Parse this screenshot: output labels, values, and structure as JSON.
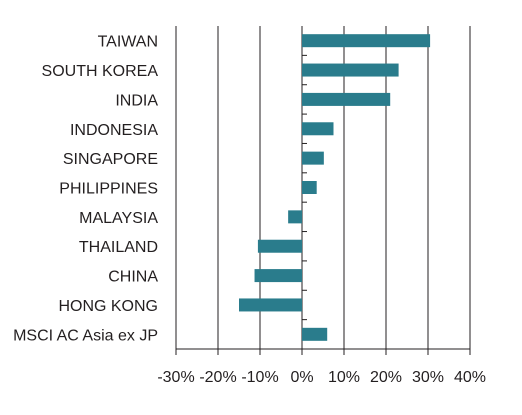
{
  "chart_data": {
    "type": "bar",
    "orientation": "horizontal",
    "title": "",
    "xlabel": "",
    "ylabel": "",
    "categories": [
      "TAIWAN",
      "SOUTH KOREA",
      "INDIA",
      "INDONESIA",
      "SINGAPORE",
      "PHILIPPINES",
      "MALAYSIA",
      "THAILAND",
      "CHINA",
      "HONG KONG",
      "MSCI AC Asia ex JP"
    ],
    "values": [
      30.5,
      23,
      21,
      7.5,
      5.2,
      3.5,
      -3.3,
      -10.5,
      -11.3,
      -15,
      6
    ],
    "unit": "%",
    "xlim": [
      -30,
      40
    ],
    "xticks": [
      -30,
      -20,
      -10,
      0,
      10,
      20,
      30,
      40
    ],
    "xtick_labels": [
      "-30%",
      "-20%",
      "-10%",
      "0%",
      "10%",
      "20%",
      "30%",
      "40%"
    ],
    "grid": "vertical",
    "legend": "none",
    "bar_color": "#2a7c8c",
    "axis_color": "#231f20",
    "grid_color": "#231f20"
  }
}
